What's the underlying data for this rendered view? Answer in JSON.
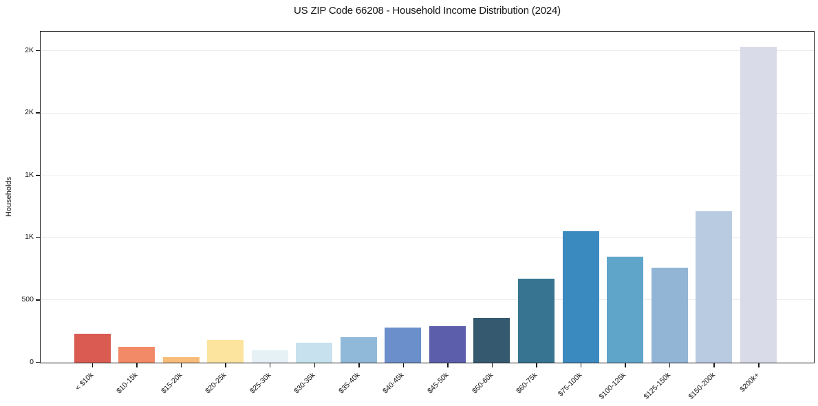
{
  "chart_data": {
    "type": "bar",
    "title": "US ZIP Code 66208 - Household Income Distribution (2024)",
    "xlabel": "",
    "ylabel": "Households",
    "categories": [
      "< $10k",
      "$10-15k",
      "$15-20k",
      "$20-25k",
      "$25-30k",
      "$30-35k",
      "$35-40k",
      "$40-45k",
      "$45-50k",
      "$50-60k",
      "$60-75k",
      "$75-100k",
      "$100-125k",
      "$125-150k",
      "$150-200k",
      "$200k+"
    ],
    "values": [
      230,
      125,
      45,
      180,
      100,
      160,
      205,
      280,
      290,
      360,
      670,
      1050,
      850,
      760,
      1210,
      2530
    ],
    "bar_colors": [
      "#d95b52",
      "#f28a67",
      "#f7bd78",
      "#fce39e",
      "#e6f1f6",
      "#c7e2ee",
      "#90b9d9",
      "#6a8fca",
      "#5c5dab",
      "#35596e",
      "#377491",
      "#3a8abf",
      "#5fa5c9",
      "#92b5d5",
      "#b9cbe1",
      "#d9dbe9"
    ],
    "yticks": {
      "values": [
        0,
        500,
        1000,
        1500,
        2000,
        2500
      ],
      "labels": [
        "0",
        "500",
        "1K",
        "1K",
        "2K",
        "2K"
      ]
    },
    "ylim": [
      0,
      2650
    ],
    "xtick_rotation_deg": 45,
    "grid": "horizontal-only",
    "legend": "none",
    "colors": {
      "background": "#ffffff",
      "spine": "#1a1a1a",
      "grid": "#ebebeb",
      "text": "#141414"
    }
  }
}
